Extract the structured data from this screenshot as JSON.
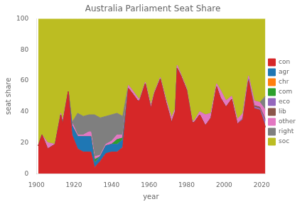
{
  "chart_data": {
    "type": "area",
    "title": "Australia Parliament Seat Share",
    "xlabel": "year",
    "ylabel": "seat share",
    "stacked": true,
    "grid": false,
    "legend": "right",
    "xlim": [
      1900,
      2022
    ],
    "xticks": [
      1900,
      1920,
      1940,
      1960,
      1980,
      2000,
      2020
    ],
    "ylim": [
      0,
      100
    ],
    "yticks": [
      0,
      20,
      40,
      60,
      80,
      100
    ],
    "x": [
      1901,
      1903,
      1906,
      1910,
      1913,
      1914,
      1917,
      1919,
      1922,
      1925,
      1928,
      1929,
      1931,
      1934,
      1937,
      1940,
      1943,
      1946,
      1949,
      1951,
      1954,
      1955,
      1958,
      1961,
      1963,
      1966,
      1969,
      1972,
      1974,
      1975,
      1977,
      1980,
      1983,
      1984,
      1987,
      1990,
      1993,
      1996,
      1998,
      2001,
      2004,
      2007,
      2010,
      2013,
      2016,
      2019,
      2022
    ],
    "series": [
      {
        "name": "con",
        "color": "#d62728",
        "values": [
          18,
          25,
          16,
          19,
          38,
          32,
          53,
          25,
          16,
          14,
          14,
          14,
          4,
          8,
          13,
          14,
          14,
          17,
          55,
          52,
          47,
          47,
          58,
          42,
          52,
          61,
          46,
          33,
          40,
          68,
          63,
          54,
          33,
          33,
          38,
          31,
          36,
          56,
          49,
          43,
          48,
          32,
          35,
          60,
          42,
          41,
          30
        ]
      },
      {
        "name": "agr",
        "color": "#1f77b4",
        "values": [
          0,
          0,
          0,
          0,
          0,
          0,
          0,
          6,
          8,
          10,
          10,
          10,
          3,
          3,
          5,
          5,
          5,
          5,
          0,
          0,
          0,
          0,
          0,
          0,
          0,
          0,
          0,
          0,
          0,
          0,
          0,
          0,
          0,
          0,
          0,
          0,
          0,
          0,
          0,
          0,
          0,
          0,
          0,
          0,
          0,
          0,
          0
        ]
      },
      {
        "name": "chr",
        "color": "#ff7f0e",
        "values": [
          0,
          0,
          0,
          0,
          0,
          0,
          0,
          0,
          0,
          0,
          0,
          0,
          0,
          0,
          0,
          0,
          0,
          0,
          0,
          0,
          0,
          0,
          0,
          0,
          0,
          0,
          0,
          0,
          0,
          0,
          0,
          0,
          0,
          0,
          0,
          0,
          0,
          0,
          0,
          0,
          0,
          0,
          0,
          0,
          0,
          0,
          0
        ]
      },
      {
        "name": "com",
        "color": "#2ca02c",
        "values": [
          0,
          0,
          0,
          0,
          0,
          0,
          0,
          0,
          0,
          0,
          0,
          0,
          2,
          0,
          0,
          0,
          3,
          1,
          0,
          0,
          0,
          0,
          0,
          0,
          0,
          0,
          0,
          0,
          0,
          0,
          0,
          0,
          0,
          0,
          0,
          0,
          0,
          0,
          0,
          0,
          0,
          0,
          0,
          0,
          0,
          0,
          0
        ]
      },
      {
        "name": "eco",
        "color": "#9467bd",
        "values": [
          0,
          0,
          0,
          0,
          0,
          0,
          0,
          0,
          0,
          0,
          0,
          0,
          0,
          0,
          0,
          0,
          0,
          0,
          0,
          0,
          0,
          0,
          0,
          0,
          0,
          0,
          0,
          0,
          0,
          0,
          0,
          0,
          0,
          0,
          0,
          0,
          0,
          0,
          0,
          0,
          0,
          0,
          1,
          1,
          1,
          1,
          4
        ]
      },
      {
        "name": "lib",
        "color": "#8c564b",
        "values": [
          0,
          0,
          0,
          0,
          0,
          0,
          0,
          0,
          0,
          0,
          0,
          0,
          0,
          0,
          0,
          0,
          0,
          0,
          0,
          0,
          0,
          0,
          0,
          0,
          0,
          0,
          0,
          0,
          0,
          0,
          0,
          0,
          0,
          0,
          0,
          0,
          0,
          0,
          0,
          0,
          0,
          0,
          0,
          0,
          1,
          1,
          1
        ]
      },
      {
        "name": "other",
        "color": "#e377c2",
        "values": [
          0,
          0,
          4,
          0,
          1,
          2,
          0,
          2,
          1,
          1,
          3,
          3,
          2,
          1,
          1,
          2,
          3,
          2,
          2,
          2,
          2,
          1,
          1,
          2,
          1,
          1,
          2,
          3,
          2,
          2,
          1,
          1,
          1,
          1,
          2,
          7,
          3,
          2,
          5,
          4,
          2,
          3,
          3,
          2,
          3,
          3,
          6
        ]
      },
      {
        "name": "right",
        "color": "#7f7f7f",
        "values": [
          0,
          0,
          0,
          0,
          0,
          0,
          0,
          0,
          14,
          12,
          11,
          11,
          27,
          24,
          18,
          17,
          14,
          12,
          0,
          0,
          0,
          0,
          0,
          0,
          0,
          0,
          0,
          0,
          0,
          0,
          0,
          0,
          0,
          0,
          0,
          0,
          0,
          0,
          0,
          0,
          0,
          0,
          0,
          0,
          0,
          0,
          9
        ]
      },
      {
        "name": "soc",
        "color": "#bcbd22",
        "values": [
          82,
          75,
          80,
          81,
          61,
          66,
          47,
          67,
          61,
          63,
          62,
          62,
          62,
          64,
          63,
          62,
          61,
          63,
          43,
          46,
          51,
          52,
          41,
          56,
          47,
          38,
          52,
          64,
          58,
          30,
          36,
          45,
          66,
          66,
          60,
          62,
          61,
          42,
          46,
          53,
          50,
          65,
          61,
          37,
          53,
          54,
          50
        ]
      }
    ]
  }
}
